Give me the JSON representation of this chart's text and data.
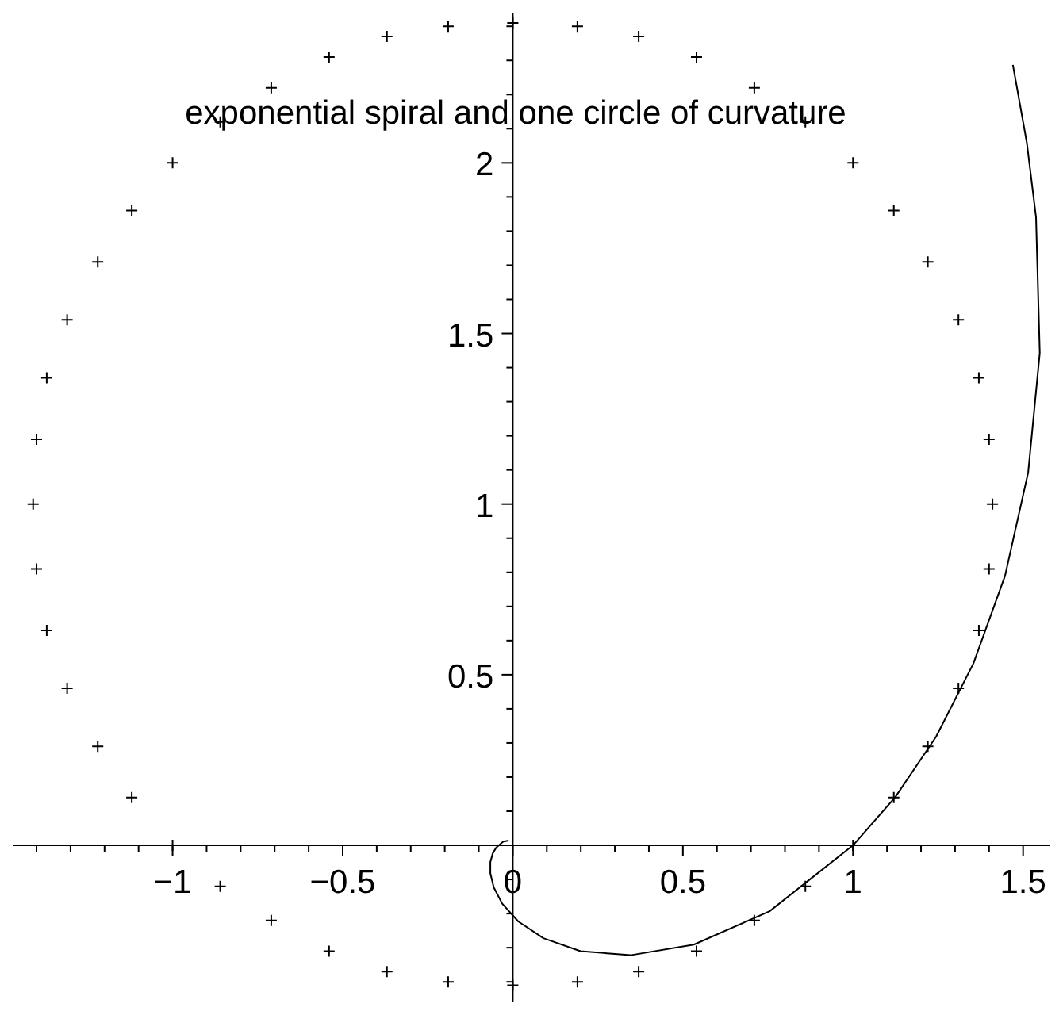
{
  "chart_data": {
    "type": "line",
    "title": "exponential spiral and one circle of curvature",
    "xlim": [
      -1.47,
      1.58
    ],
    "ylim": [
      -0.46,
      2.44
    ],
    "xticks": [
      {
        "value": -1.4,
        "label": null
      },
      {
        "value": -1.3,
        "label": null
      },
      {
        "value": -1.2,
        "label": null
      },
      {
        "value": -1.1,
        "label": null
      },
      {
        "value": -1,
        "label": "−1"
      },
      {
        "value": -0.9,
        "label": null
      },
      {
        "value": -0.8,
        "label": null
      },
      {
        "value": -0.7,
        "label": null
      },
      {
        "value": -0.6,
        "label": null
      },
      {
        "value": -0.5,
        "label": "−0.5"
      },
      {
        "value": -0.4,
        "label": null
      },
      {
        "value": -0.3,
        "label": null
      },
      {
        "value": -0.2,
        "label": null
      },
      {
        "value": -0.1,
        "label": null
      },
      0,
      {
        "value": 0.1,
        "label": null
      },
      {
        "value": 0.2,
        "label": null
      },
      {
        "value": 0.3,
        "label": null
      },
      {
        "value": 0.4,
        "label": null
      },
      0.5,
      {
        "value": 0.6,
        "label": null
      },
      {
        "value": 0.7,
        "label": null
      },
      {
        "value": 0.8,
        "label": null
      },
      {
        "value": 0.9,
        "label": null
      },
      1,
      {
        "value": 1.1,
        "label": null
      },
      {
        "value": 1.2,
        "label": null
      },
      {
        "value": 1.3,
        "label": null
      },
      {
        "value": 1.4,
        "label": null
      },
      1.5
    ],
    "yticks": [
      {
        "value": -0.4,
        "label": null
      },
      {
        "value": -0.3,
        "label": null
      },
      {
        "value": -0.2,
        "label": null
      },
      {
        "value": -0.1,
        "label": null
      },
      {
        "value": 0.1,
        "label": null
      },
      {
        "value": 0.2,
        "label": null
      },
      {
        "value": 0.3,
        "label": null
      },
      {
        "value": 0.4,
        "label": null
      },
      0.5,
      {
        "value": 0.6,
        "label": null
      },
      {
        "value": 0.7,
        "label": null
      },
      {
        "value": 0.8,
        "label": null
      },
      {
        "value": 0.9,
        "label": null
      },
      1,
      {
        "value": 1.1,
        "label": null
      },
      {
        "value": 1.2,
        "label": null
      },
      {
        "value": 1.3,
        "label": null
      },
      {
        "value": 1.4,
        "label": null
      },
      1.5,
      {
        "value": 1.6,
        "label": null
      },
      {
        "value": 1.7,
        "label": null
      },
      {
        "value": 1.8,
        "label": null
      },
      {
        "value": 1.9,
        "label": null
      },
      2,
      {
        "value": 2.1,
        "label": null
      },
      {
        "value": 2.2,
        "label": null
      },
      {
        "value": 2.3,
        "label": null
      },
      {
        "value": 2.4,
        "label": null
      }
    ],
    "grid": false,
    "legend": false,
    "series": [
      {
        "marker": "none",
        "line_style": "solid",
        "color": "#000000",
        "x": [
          -0.012,
          -0.028,
          -0.049,
          -0.059,
          -0.066,
          -0.066,
          -0.056,
          -0.031,
          0.016,
          0.09,
          0.199,
          0.346,
          0.532,
          0.755,
          1,
          1.124,
          1.244,
          1.354,
          1.447,
          1.515,
          1.549,
          1.538,
          1.511,
          1.47
        ],
        "values": [
          0.014,
          0.011,
          -0.007,
          -0.024,
          -0.049,
          -0.082,
          -0.123,
          -0.171,
          -0.223,
          -0.272,
          -0.31,
          -0.322,
          -0.291,
          -0.193,
          0,
          0.141,
          0.318,
          0.533,
          0.79,
          1.093,
          1.443,
          1.841,
          2.059,
          2.287
        ]
      },
      {
        "type": "scatter",
        "marker": "cross",
        "color": "#000000",
        "x": [
          0,
          0.19,
          0.37,
          0.54,
          0.71,
          0.86,
          1,
          1.12,
          1.22,
          1.31,
          1.37,
          1.4,
          1.41,
          1.4,
          1.37,
          1.31,
          1.22,
          1.12,
          1,
          0.86,
          0.71,
          0.54,
          0.37,
          0.19,
          0,
          -0.19,
          -0.37,
          -0.54,
          -0.71,
          -0.86,
          -1,
          -1.12,
          -1.22,
          -1.31,
          -1.37,
          -1.4,
          -1.41,
          -1.4,
          -1.37,
          -1.31,
          -1.22,
          -1.12,
          -1,
          -0.86,
          -0.71,
          -0.54,
          -0.37,
          -0.19
        ],
        "values": [
          -0.41,
          -0.4,
          -0.37,
          -0.31,
          -0.22,
          -0.12,
          0,
          0.14,
          0.29,
          0.46,
          0.63,
          0.81,
          1,
          1.19,
          1.37,
          1.54,
          1.71,
          1.86,
          2,
          2.12,
          2.22,
          2.31,
          2.37,
          2.4,
          2.41,
          2.4,
          2.37,
          2.31,
          2.22,
          2.12,
          2,
          1.86,
          1.71,
          1.54,
          1.37,
          1.19,
          1,
          0.81,
          0.63,
          0.46,
          0.29,
          0.14,
          0,
          -0.12,
          -0.22,
          -0.31,
          -0.37,
          -0.4
        ]
      }
    ]
  }
}
